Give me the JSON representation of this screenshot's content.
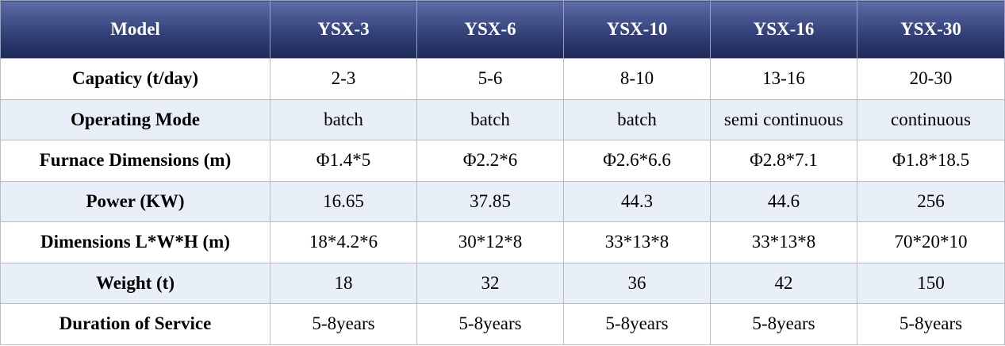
{
  "table": {
    "header": [
      "Model",
      "YSX-3",
      "YSX-6",
      "YSX-10",
      "YSX-16",
      "YSX-30"
    ],
    "rows": [
      [
        "Capaticy (t/day)",
        "2-3",
        "5-6",
        "8-10",
        "13-16",
        "20-30"
      ],
      [
        "Operating Mode",
        "batch",
        "batch",
        "batch",
        "semi continuous",
        "continuous"
      ],
      [
        "Furnace Dimensions (m)",
        "Φ1.4*5",
        "Φ2.2*6",
        "Φ2.6*6.6",
        "Φ2.8*7.1",
        "Φ1.8*18.5"
      ],
      [
        "Power (KW)",
        "16.65",
        "37.85",
        "44.3",
        "44.6",
        "256"
      ],
      [
        "Dimensions L*W*H (m)",
        "18*4.2*6",
        "30*12*8",
        "33*13*8",
        "33*13*8",
        "70*20*10"
      ],
      [
        "Weight (t)",
        "18",
        "32",
        "36",
        "42",
        "150"
      ],
      [
        "Duration of Service",
        "5-8years",
        "5-8years",
        "5-8years",
        "5-8years",
        "5-8years"
      ]
    ]
  }
}
